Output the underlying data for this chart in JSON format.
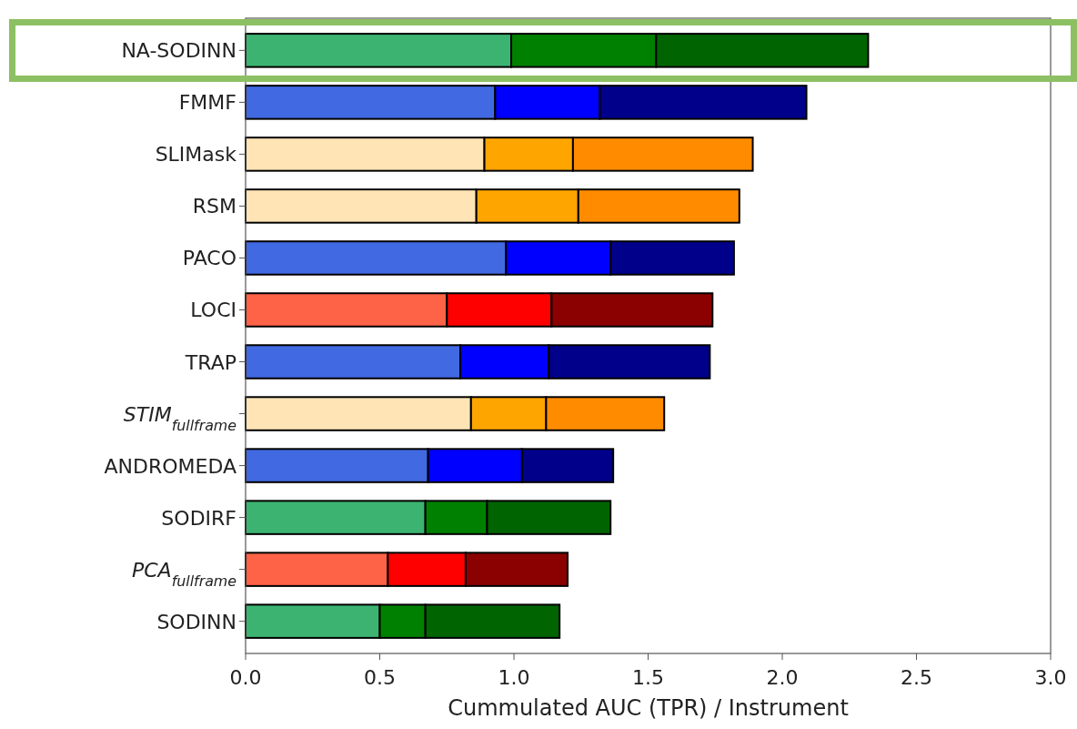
{
  "chart_data": {
    "type": "bar",
    "orientation": "horizontal",
    "stacked": true,
    "xlabel": "Cummulated AUC (TPR) / Instrument",
    "categories": [
      "NA-SODINN",
      "FMMF",
      "SLIMask",
      "RSM",
      "PACO",
      "LOCI",
      "TRAP",
      "STIM$_{fullframe}$",
      "ANDROMEDA",
      "SODIRF",
      "PCA$_{fullframe}$",
      "SODINN"
    ],
    "series": [
      {
        "values": [
          0.99,
          0.93,
          0.89,
          0.86,
          0.97,
          0.75,
          0.8,
          0.84,
          0.68,
          0.67,
          0.53,
          0.5
        ],
        "colors": [
          "#3cb371",
          "#4169e1",
          "#ffe4b5",
          "#ffe4b5",
          "#4169e1",
          "#ff6347",
          "#4169e1",
          "#ffe4b5",
          "#4169e1",
          "#3cb371",
          "#ff6347",
          "#3cb371"
        ]
      },
      {
        "values": [
          0.54,
          0.39,
          0.33,
          0.38,
          0.39,
          0.39,
          0.33,
          0.28,
          0.35,
          0.23,
          0.29,
          0.17
        ],
        "colors": [
          "#008000",
          "#0000ff",
          "#ffa500",
          "#ffa500",
          "#0000ff",
          "#ff0000",
          "#0000ff",
          "#ffa500",
          "#0000ff",
          "#008000",
          "#ff0000",
          "#008000"
        ]
      },
      {
        "values": [
          0.79,
          0.77,
          0.67,
          0.6,
          0.46,
          0.6,
          0.6,
          0.44,
          0.34,
          0.46,
          0.38,
          0.5
        ],
        "colors": [
          "#006400",
          "#00008b",
          "#ff8c00",
          "#ff8c00",
          "#00008b",
          "#8b0000",
          "#00008b",
          "#ff8c00",
          "#00008b",
          "#006400",
          "#8b0000",
          "#006400"
        ]
      }
    ],
    "xlim": [
      0,
      3
    ],
    "xticks": [
      {
        "value": 0,
        "label": "0.0"
      },
      {
        "value": 0.5,
        "label": "0.5"
      },
      {
        "value": 1,
        "label": "1.0"
      },
      {
        "value": 1.5,
        "label": "1.5"
      },
      {
        "value": 2,
        "label": "2.0"
      },
      {
        "value": 2.5,
        "label": "2.5"
      },
      {
        "value": 3,
        "label": "3.0"
      }
    ],
    "grid": false
  }
}
